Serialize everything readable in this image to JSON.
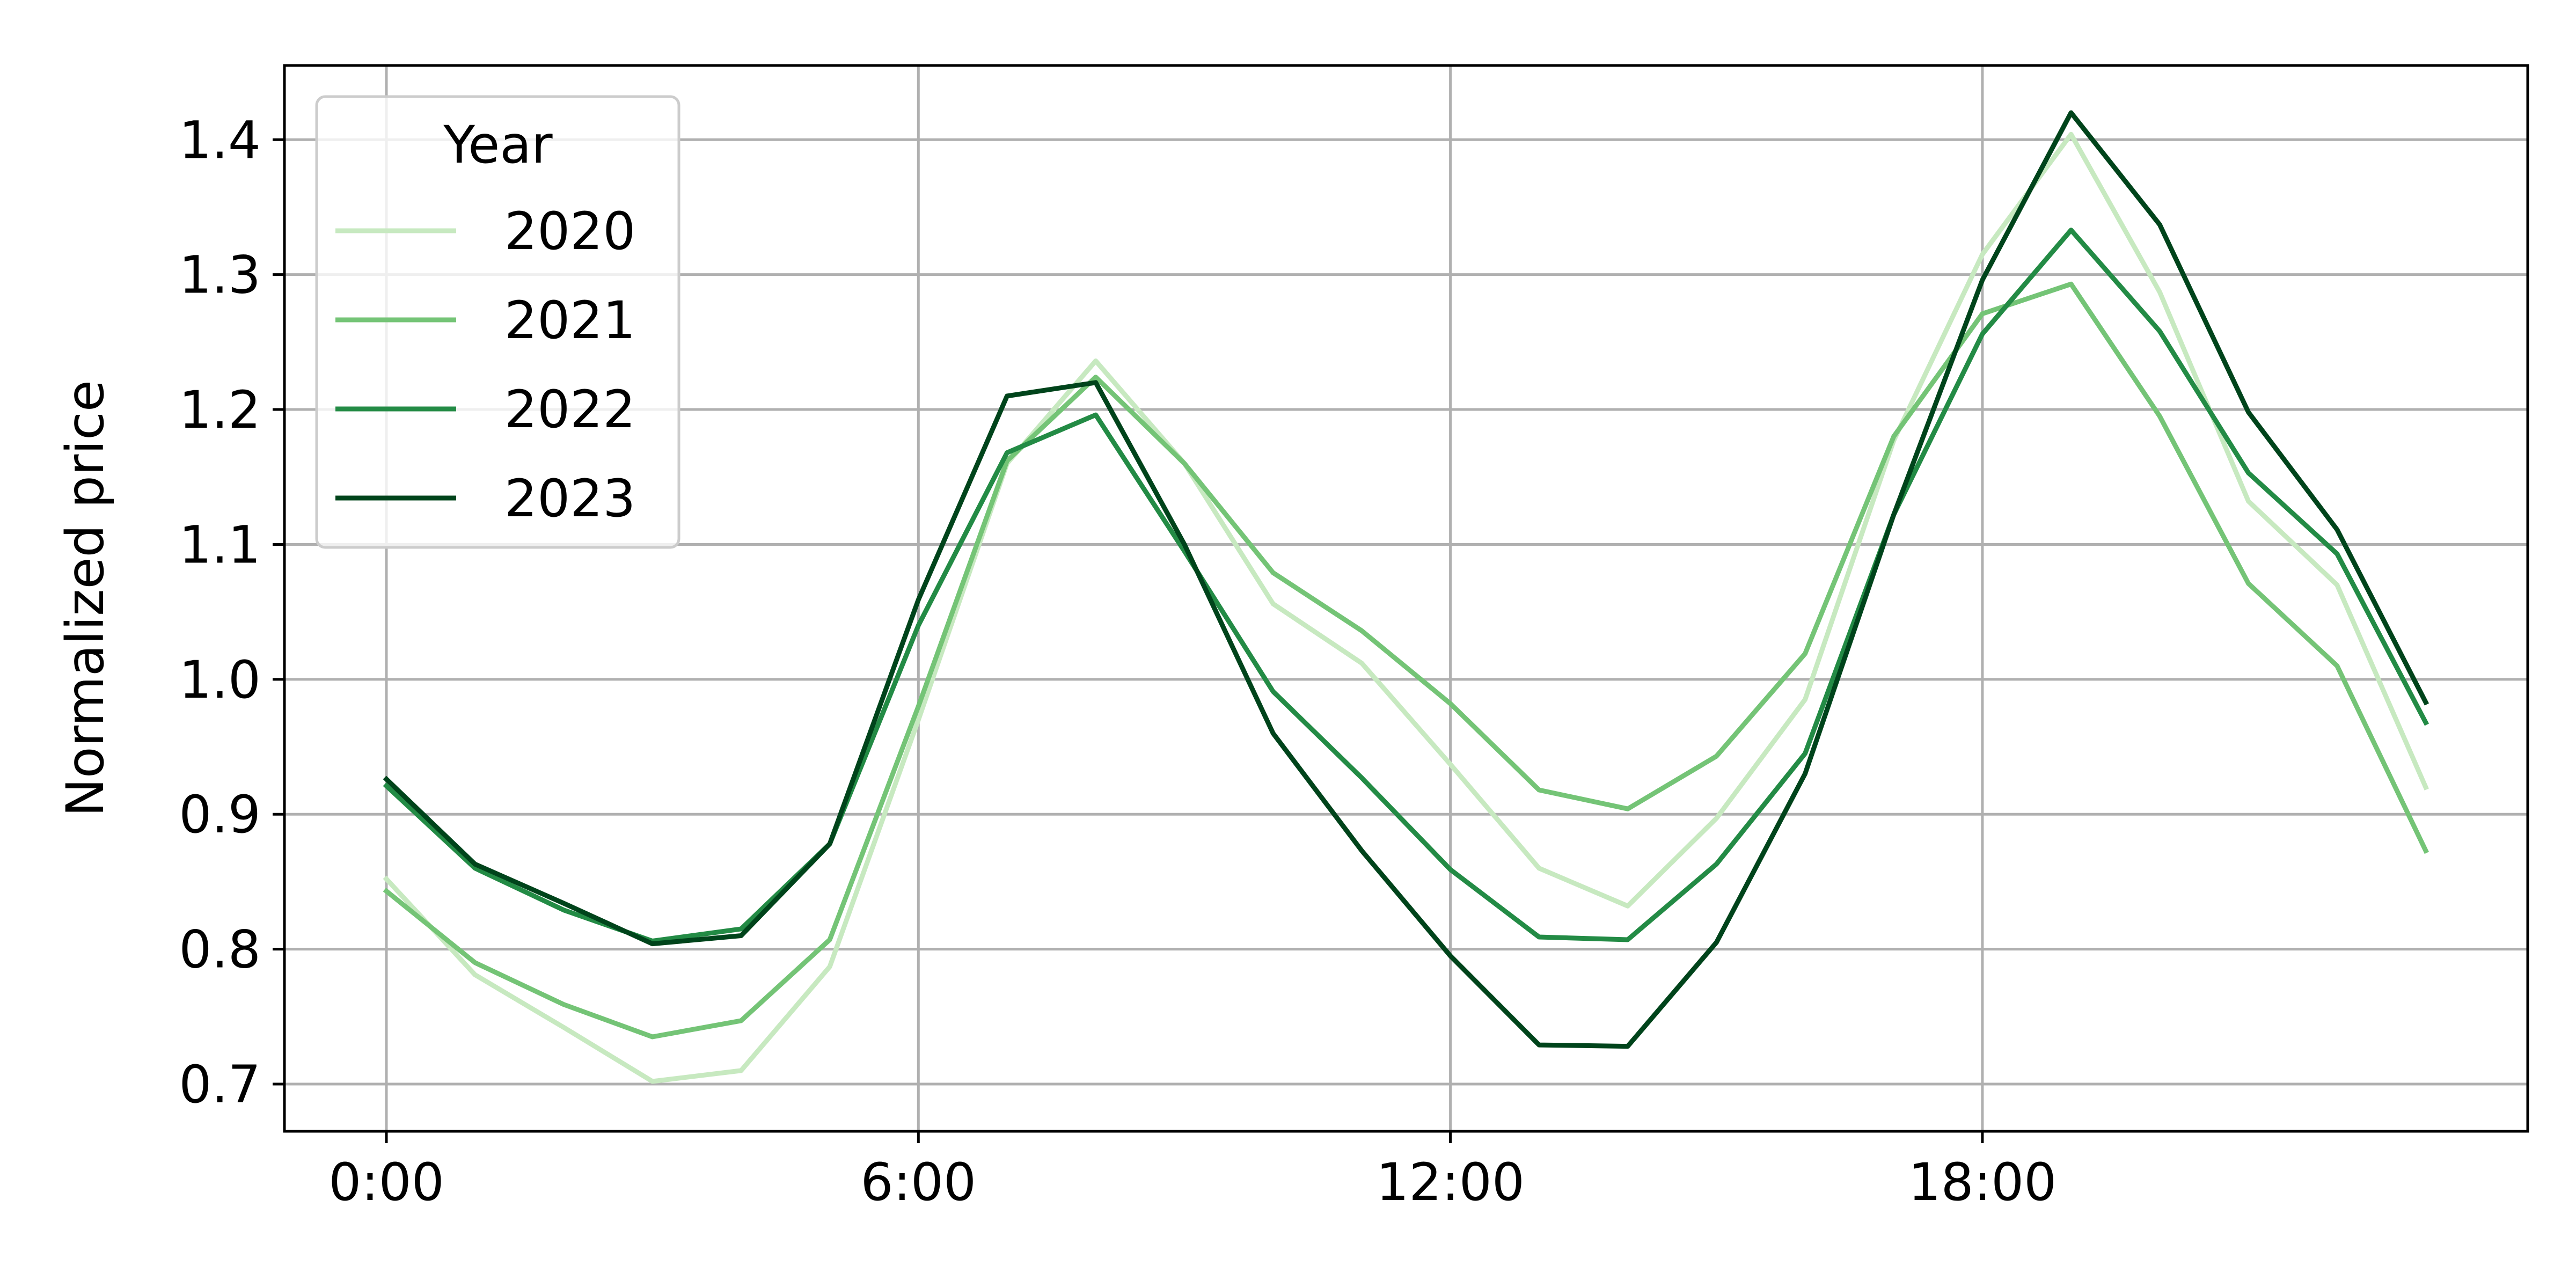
{
  "chart_data": {
    "type": "line",
    "title": "",
    "xlabel": "",
    "ylabel": "Normalized price",
    "x": [
      0,
      1,
      2,
      3,
      4,
      5,
      6,
      7,
      8,
      9,
      10,
      11,
      12,
      13,
      14,
      15,
      16,
      17,
      18,
      19,
      20,
      21,
      22,
      23
    ],
    "xticks": [
      0,
      6,
      12,
      18
    ],
    "xtick_labels": [
      "0:00",
      "6:00",
      "12:00",
      "18:00"
    ],
    "xlim": [
      -1.15,
      24.15
    ],
    "yticks": [
      0.7,
      0.8,
      0.9,
      1.0,
      1.1,
      1.2,
      1.3,
      1.4
    ],
    "ytick_labels": [
      "0.7",
      "0.8",
      "0.9",
      "1.0",
      "1.1",
      "1.2",
      "1.3",
      "1.4"
    ],
    "ylim": [
      0.665,
      1.455
    ],
    "grid": true,
    "legend": {
      "title": "Year",
      "placement": "top-left"
    },
    "series": [
      {
        "name": "2020",
        "color": "#c7e9c0",
        "values": [
          0.852,
          0.781,
          0.742,
          0.702,
          0.71,
          0.787,
          0.97,
          1.16,
          1.236,
          1.16,
          1.056,
          1.012,
          0.937,
          0.86,
          0.832,
          0.897,
          0.985,
          1.177,
          1.315,
          1.404,
          1.287,
          1.132,
          1.07,
          0.92
        ]
      },
      {
        "name": "2021",
        "color": "#74c476",
        "values": [
          0.843,
          0.79,
          0.759,
          0.735,
          0.747,
          0.807,
          0.98,
          1.162,
          1.224,
          1.16,
          1.079,
          1.036,
          0.982,
          0.918,
          0.904,
          0.943,
          1.019,
          1.18,
          1.271,
          1.293,
          1.195,
          1.071,
          1.01,
          0.873
        ]
      },
      {
        "name": "2022",
        "color": "#238b45",
        "values": [
          0.921,
          0.86,
          0.829,
          0.806,
          0.815,
          0.878,
          1.04,
          1.168,
          1.196,
          1.095,
          0.991,
          0.927,
          0.859,
          0.809,
          0.807,
          0.863,
          0.945,
          1.122,
          1.256,
          1.333,
          1.258,
          1.153,
          1.093,
          0.968
        ]
      },
      {
        "name": "2023",
        "color": "#00441b",
        "values": [
          0.926,
          0.863,
          0.834,
          0.804,
          0.81,
          0.878,
          1.059,
          1.21,
          1.22,
          1.1,
          0.96,
          0.873,
          0.795,
          0.729,
          0.728,
          0.805,
          0.93,
          1.122,
          1.296,
          1.42,
          1.337,
          1.198,
          1.111,
          0.983
        ]
      }
    ]
  }
}
